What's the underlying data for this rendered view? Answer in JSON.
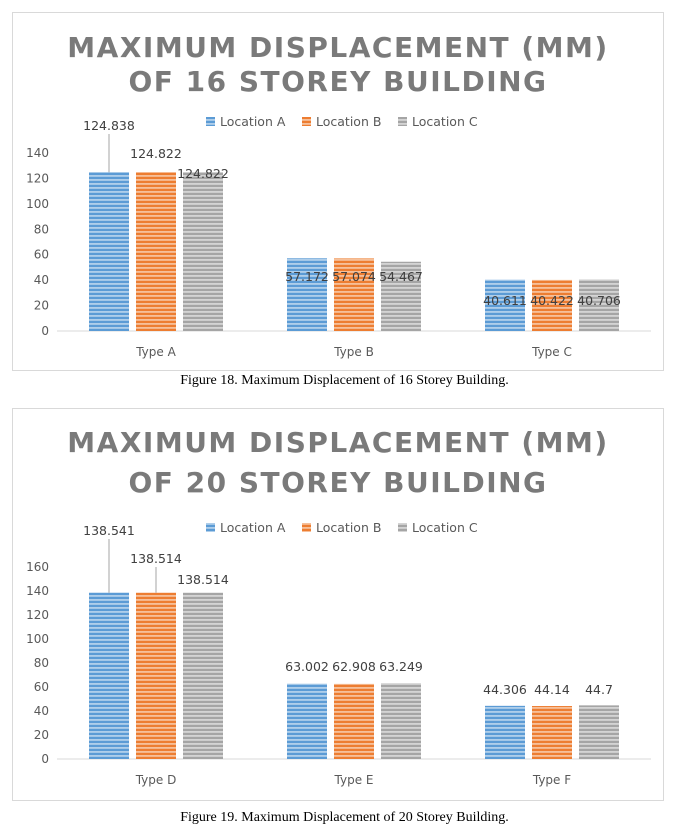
{
  "figures": [
    {
      "caption": "Figure 18. Maximum Displacement of 16 Storey Building."
    },
    {
      "caption": "Figure 19. Maximum Displacement of 20 Storey Building."
    }
  ],
  "chart_data": [
    {
      "type": "bar",
      "title_lines": [
        "MAXIMUM DISPLACEMENT (MM)",
        "OF 16 STOREY BUILDING"
      ],
      "categories": [
        "Type A",
        "Type B",
        "Type C"
      ],
      "series": [
        {
          "name": "Location A",
          "values": [
            124.838,
            57.172,
            40.611
          ],
          "color": "#5b9bd5"
        },
        {
          "name": "Location  B",
          "values": [
            124.822,
            57.074,
            40.422
          ],
          "color": "#ed7d31"
        },
        {
          "name": "Location  C",
          "values": [
            124.822,
            54.467,
            40.706
          ],
          "color": "#a5a5a5"
        }
      ],
      "data_labels": [
        [
          "124.838",
          "57.172",
          "40.611"
        ],
        [
          "124.822",
          "57.074",
          "40.422"
        ],
        [
          "124.822",
          "54.467",
          "40.706"
        ]
      ],
      "ylim": [
        0,
        140
      ],
      "yticks": [
        0,
        20,
        40,
        60,
        80,
        100,
        120,
        140
      ],
      "xlabel": "",
      "ylabel": "",
      "grid": false,
      "legend_position": "top-right"
    },
    {
      "type": "bar",
      "title_lines": [
        "MAXIMUM DISPLACEMENT (MM)",
        "OF 20 STOREY BUILDING"
      ],
      "categories": [
        "Type D",
        "Type E",
        "Type F"
      ],
      "series": [
        {
          "name": "Location A",
          "values": [
            138.541,
            63.002,
            44.306
          ],
          "color": "#5b9bd5"
        },
        {
          "name": "Location  B",
          "values": [
            138.514,
            62.908,
            44.14
          ],
          "color": "#ed7d31"
        },
        {
          "name": "Location  C",
          "values": [
            138.514,
            63.249,
            44.7
          ],
          "color": "#a5a5a5"
        }
      ],
      "data_labels": [
        [
          "138.541",
          "63.002",
          "44.306"
        ],
        [
          "138.514",
          "62.908",
          "44.14"
        ],
        [
          "138.514",
          "63.249",
          "44.7"
        ]
      ],
      "ylim": [
        0,
        160
      ],
      "yticks": [
        0,
        20,
        40,
        60,
        80,
        100,
        120,
        140,
        160
      ],
      "xlabel": "",
      "ylabel": "",
      "grid": false,
      "legend_position": "top-right"
    }
  ]
}
